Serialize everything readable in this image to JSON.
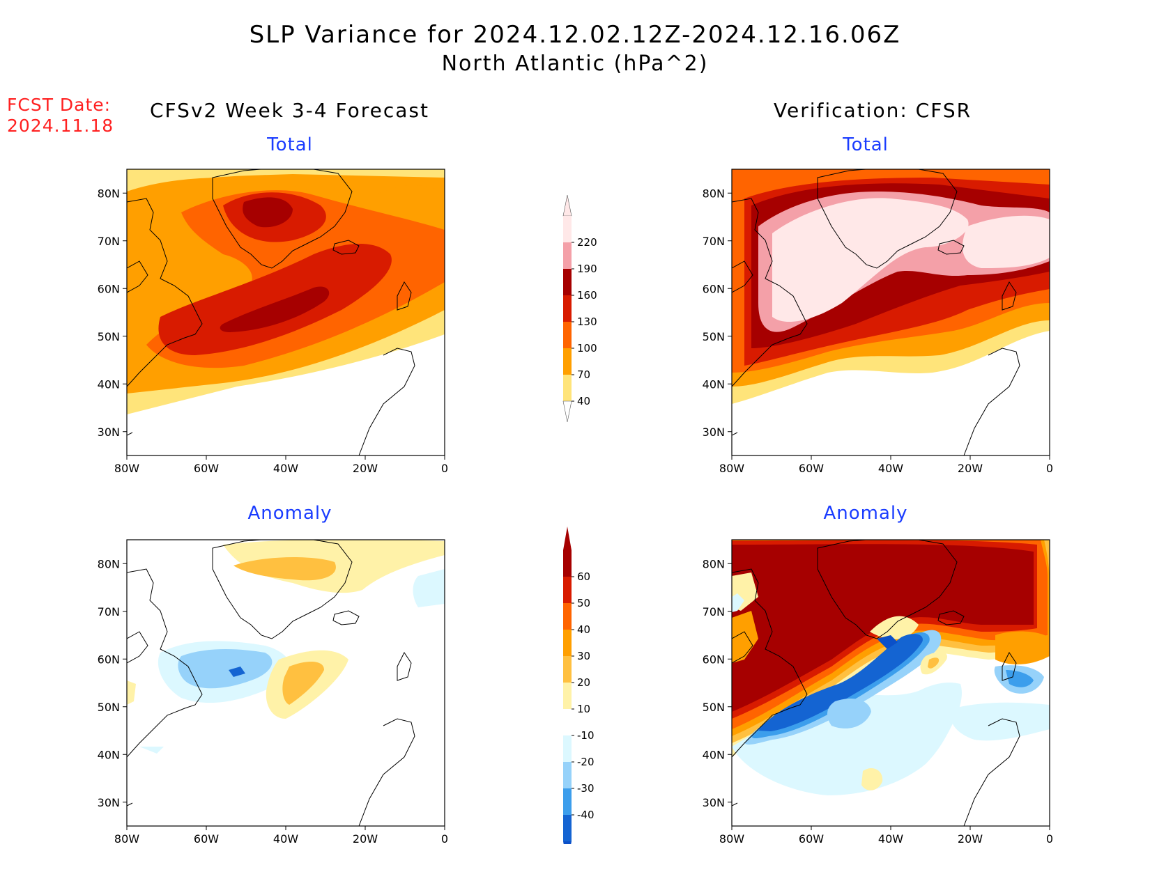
{
  "header": {
    "title_line1": "SLP Variance for 2024.12.02.12Z-2024.12.16.06Z",
    "title_line2": "North Atlantic (hPa^2)",
    "fcst_label": "FCST Date:",
    "fcst_date": "2024.11.18",
    "left_column_title": "CFSv2 Week 3-4 Forecast",
    "right_column_title": "Verification: CFSR"
  },
  "panels": {
    "forecast_total": {
      "subtitle": "Total"
    },
    "verification_total": {
      "subtitle": "Total"
    },
    "forecast_anomaly": {
      "subtitle": "Anomaly"
    },
    "verification_anomaly": {
      "subtitle": "Anomaly"
    }
  },
  "map_axes": {
    "lat_ticks": [
      "80N",
      "70N",
      "60N",
      "50N",
      "40N",
      "30N"
    ],
    "lon_ticks": [
      "80W",
      "60W",
      "40W",
      "20W",
      "0"
    ]
  },
  "colorbars": {
    "total": {
      "levels": [
        "220",
        "190",
        "160",
        "130",
        "100",
        "70",
        "40"
      ],
      "colors": [
        "#ffe8e8",
        "#f4a0a8",
        "#a60000",
        "#d81b00",
        "#ff6400",
        "#ff9f00",
        "#ffe47a"
      ]
    },
    "anomaly": {
      "levels": [
        "60",
        "50",
        "40",
        "30",
        "20",
        "10",
        "-10",
        "-20",
        "-30",
        "-40"
      ],
      "colors": [
        "#a60000",
        "#d81b00",
        "#ff6400",
        "#ff9f00",
        "#ffc040",
        "#fff2a8",
        "#ffffff",
        "#dcf8ff",
        "#96d2fa",
        "#3c9eec",
        "#1464d2",
        "#0b50c8"
      ]
    }
  },
  "colors": {
    "title": "#000000",
    "fcst_date": "#ff2020",
    "subtitle": "#1a3cff"
  }
}
